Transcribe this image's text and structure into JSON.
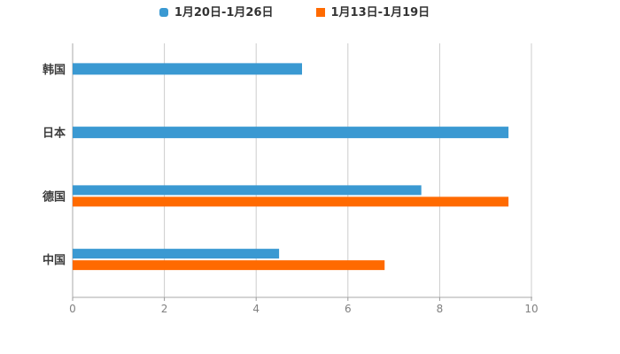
{
  "legend": {
    "items": [
      {
        "label": "1月20日-1月26日",
        "marker": "rounded-square",
        "color": "#3A99D2"
      },
      {
        "label": "1月13日-1月19日",
        "marker": "square",
        "color": "#FF6A00"
      }
    ],
    "position": "top-center"
  },
  "chart_data": {
    "type": "bar",
    "orientation": "horizontal",
    "title": "",
    "xlabel": "",
    "ylabel": "",
    "categories": [
      "韩国",
      "日本",
      "德国",
      "中国"
    ],
    "series": [
      {
        "name": "1月20日-1月26日",
        "color": "#3A99D2",
        "values": [
          5.0,
          9.5,
          7.6,
          4.5
        ]
      },
      {
        "name": "1月13日-1月19日",
        "color": "#FF6A00",
        "values": [
          null,
          null,
          9.5,
          6.8
        ]
      }
    ],
    "xlim": [
      0,
      10
    ],
    "x_ticks": [
      "0",
      "2",
      "4",
      "6",
      "8",
      "10"
    ],
    "grid": "vertical-solid",
    "legend_position": "top"
  },
  "style_colors": {
    "background": "#FFFFFF",
    "gridline": "#CCCCCC",
    "axis_line": "#AAAAAA",
    "tick_mark": "#999999",
    "tick_label": "#808080",
    "category_label": "#3C3C3C",
    "legend_text": "#333333"
  }
}
